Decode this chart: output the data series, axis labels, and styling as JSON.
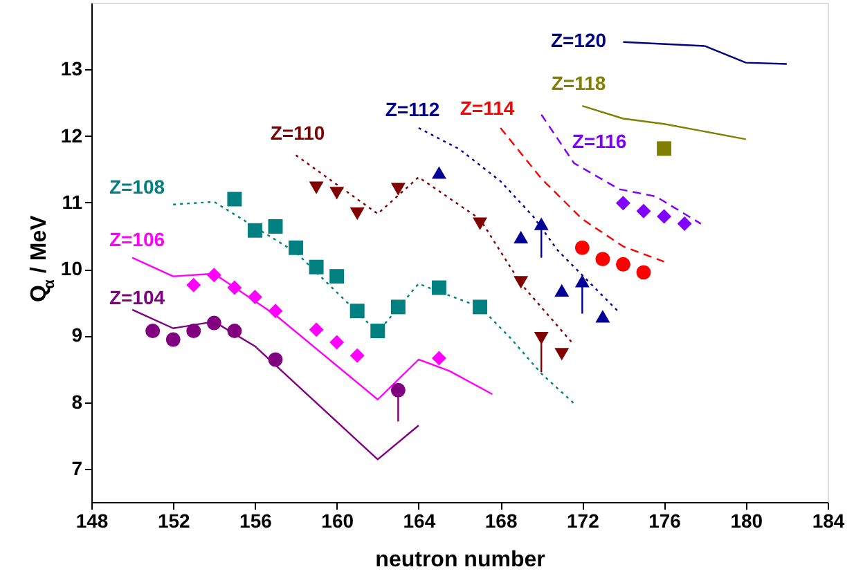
{
  "chart_data": {
    "type": "line",
    "xlabel": "neutron number",
    "ylabel": "Q$_{α}$ / MeV",
    "xlim": [
      148,
      184
    ],
    "xticks": [
      148,
      152,
      156,
      160,
      164,
      168,
      172,
      176,
      180,
      184
    ],
    "ylim": [
      6.5,
      14
    ],
    "yticks": [
      7,
      8,
      9,
      10,
      11,
      12,
      13
    ],
    "grid": false,
    "series": [
      {
        "name": "Z=104",
        "color": "#800080",
        "line_style": "solid",
        "marker": "none",
        "x": [
          150,
          152,
          154,
          156,
          162,
          164
        ],
        "values": [
          9.39,
          9.11,
          9.21,
          8.84,
          7.14,
          7.65
        ]
      },
      {
        "name": "Z=106",
        "color": "#ff00ff",
        "line_style": "solid",
        "marker": "none",
        "x": [
          150,
          152,
          154,
          157,
          162,
          164,
          165.5,
          167.6
        ],
        "values": [
          10.17,
          9.89,
          9.93,
          9.31,
          8.04,
          8.64,
          8.47,
          8.12
        ]
      },
      {
        "name": "Z=108",
        "color": "#008080",
        "line_style": "dotted",
        "marker": "none",
        "x": [
          152,
          154,
          158,
          162,
          164,
          165,
          167,
          168.5,
          170,
          171.6
        ],
        "values": [
          10.97,
          11.01,
          10.25,
          9.05,
          9.78,
          9.66,
          9.43,
          8.96,
          8.43,
          7.98
        ]
      },
      {
        "name": "Z=110",
        "color": "#800000",
        "line_style": "dotted",
        "marker": "none",
        "x": [
          158,
          162,
          164,
          167,
          169,
          171.6
        ],
        "values": [
          11.71,
          10.83,
          11.38,
          10.75,
          9.78,
          8.86
        ]
      },
      {
        "name": "Z=112",
        "color": "#000099",
        "line_style": "dotted",
        "marker": "none",
        "x": [
          164,
          166,
          168,
          169.6,
          170.8,
          173.8
        ],
        "values": [
          12.12,
          11.8,
          11.32,
          10.79,
          10.28,
          9.35
        ]
      },
      {
        "name": "Z=114",
        "color": "#ff0000",
        "line_style": "dashed",
        "marker": "none",
        "x": [
          168,
          170,
          172,
          174,
          176
        ],
        "values": [
          12.12,
          11.36,
          10.75,
          10.34,
          10.11
        ]
      },
      {
        "name": "Z=116",
        "color": "#8000ff",
        "line_style": "dashed",
        "marker": "none",
        "x": [
          170,
          171.6,
          173.8,
          175.6,
          177.8
        ],
        "values": [
          12.32,
          11.59,
          11.2,
          11.09,
          10.68
        ]
      },
      {
        "name": "Z=118",
        "color": "#808000",
        "line_style": "solid",
        "marker": "none",
        "x": [
          172,
          174,
          176,
          180
        ],
        "values": [
          12.45,
          12.26,
          12.18,
          11.95
        ]
      },
      {
        "name": "Z=120",
        "color": "#000080",
        "line_style": "solid",
        "marker": "none",
        "x": [
          174,
          178,
          180,
          182
        ],
        "values": [
          13.41,
          13.35,
          13.1,
          13.08
        ]
      },
      {
        "type": "scatter",
        "color": "#800080",
        "marker": "circle",
        "x": [
          151,
          152,
          153,
          154,
          155,
          157,
          163
        ],
        "values": [
          9.07,
          8.94,
          9.07,
          9.19,
          9.07,
          8.64,
          8.18
        ],
        "errors": [
          null,
          null,
          null,
          null,
          null,
          null,
          [
            7.71,
            8.18
          ]
        ]
      },
      {
        "type": "scatter",
        "color": "#ff00ff",
        "marker": "diamond",
        "x": [
          153,
          154,
          155,
          156,
          157,
          159,
          160,
          161,
          165
        ],
        "values": [
          9.76,
          9.91,
          9.72,
          9.58,
          9.37,
          9.09,
          8.9,
          8.7,
          8.66
        ]
      },
      {
        "type": "scatter",
        "color": "#008080",
        "marker": "square",
        "x": [
          155,
          156,
          157,
          158,
          159,
          160,
          161,
          162,
          163,
          165,
          167
        ],
        "values": [
          11.05,
          10.58,
          10.64,
          10.32,
          10.03,
          9.89,
          9.37,
          9.07,
          9.43,
          9.72,
          9.43
        ]
      },
      {
        "type": "scatter",
        "color": "#800000",
        "marker": "triangle-down",
        "x": [
          159,
          160,
          161,
          163,
          167,
          169,
          170,
          171
        ],
        "values": [
          11.22,
          11.14,
          10.83,
          11.2,
          10.68,
          9.8,
          8.96,
          8.72
        ],
        "errors": [
          null,
          null,
          null,
          null,
          null,
          null,
          [
            8.45,
            8.96
          ],
          null
        ]
      },
      {
        "type": "scatter",
        "color": "#000099",
        "marker": "triangle",
        "x": [
          165,
          169,
          170,
          171,
          172,
          173
        ],
        "values": [
          11.45,
          10.48,
          10.68,
          9.68,
          9.82,
          9.29
        ],
        "errors": [
          null,
          null,
          [
            10.17,
            10.68
          ],
          null,
          [
            9.33,
            9.82
          ],
          null
        ]
      },
      {
        "type": "scatter",
        "color": "#ff0000",
        "marker": "circle",
        "x": [
          172,
          173,
          174,
          175
        ],
        "values": [
          10.32,
          10.15,
          10.07,
          9.95
        ]
      },
      {
        "type": "scatter",
        "color": "#8000ff",
        "marker": "diamond",
        "x": [
          174,
          175,
          176,
          177
        ],
        "values": [
          10.99,
          10.87,
          10.79,
          10.68
        ]
      },
      {
        "type": "scatter",
        "color": "#808000",
        "marker": "square",
        "x": [
          176
        ],
        "values": [
          11.81
        ]
      }
    ]
  }
}
